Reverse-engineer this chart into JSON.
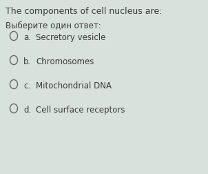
{
  "title": "The components of cell nucleus are:",
  "subtitle": "Выберите один ответ:",
  "options": [
    {
      "label": "a.",
      "text": "Secretory vesicle"
    },
    {
      "label": "b.",
      "text": "Chromosomes"
    },
    {
      "label": "c.",
      "text": "Mitochondrial DNA"
    },
    {
      "label": "d.",
      "text": "Cell surface receptors"
    }
  ],
  "bg_color": "#d8e2dc",
  "text_color": "#3a3a3a",
  "title_fontsize": 9.0,
  "subtitle_fontsize": 8.5,
  "option_fontsize": 8.5,
  "circle_color": "#666666",
  "circle_linewidth": 1.0
}
